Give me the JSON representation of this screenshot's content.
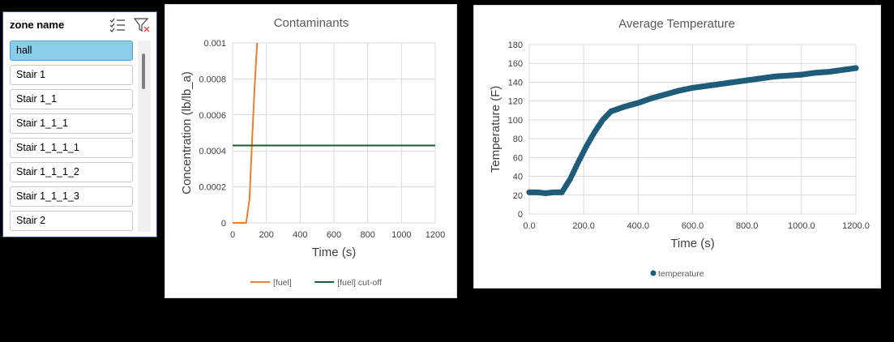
{
  "slicer": {
    "title": "zone name",
    "icons": [
      "multi-select-icon",
      "clear-filter-icon"
    ],
    "items": [
      {
        "label": "hall",
        "selected": true
      },
      {
        "label": "Stair 1",
        "selected": false
      },
      {
        "label": "Stair 1_1",
        "selected": false
      },
      {
        "label": "Stair 1_1_1",
        "selected": false
      },
      {
        "label": "Stair 1_1_1_1",
        "selected": false
      },
      {
        "label": "Stair 1_1_1_2",
        "selected": false
      },
      {
        "label": "Stair 1_1_1_3",
        "selected": false
      },
      {
        "label": "Stair 2",
        "selected": false
      }
    ]
  },
  "chart_data": [
    {
      "type": "line",
      "title": "Contaminants",
      "xlabel": "Time (s)",
      "ylabel": "Concentration (lb/lb_a)",
      "xlim": [
        0,
        1200
      ],
      "ylim": [
        0,
        0.001
      ],
      "xticks": [
        "0",
        "200",
        "400",
        "600",
        "800",
        "1000",
        "1200"
      ],
      "yticks": [
        "0",
        "0.0002",
        "0.0004",
        "0.0006",
        "0.0008",
        "0.001"
      ],
      "grid": true,
      "legend": "bottom",
      "series": [
        {
          "name": "[fuel]",
          "color": "#ed7d31",
          "x": [
            0,
            80,
            100,
            115,
            130,
            145
          ],
          "y": [
            0,
            0,
            0.00013,
            0.00045,
            0.00075,
            0.001
          ]
        },
        {
          "name": "[fuel] cut-off",
          "color": "#1e5b2e",
          "x": [
            0,
            1200
          ],
          "y": [
            0.00043,
            0.00043
          ]
        }
      ]
    },
    {
      "type": "scatter",
      "title": "Average Temperature",
      "xlabel": "Time (s)",
      "ylabel": "Temperature (F)",
      "xlim": [
        0,
        1200
      ],
      "ylim": [
        0,
        180
      ],
      "xticks": [
        "0.0",
        "200.0",
        "400.0",
        "600.0",
        "800.0",
        "1000.0",
        "1200.0"
      ],
      "yticks": [
        "0",
        "20",
        "40",
        "60",
        "80",
        "100",
        "120",
        "140",
        "160",
        "180"
      ],
      "grid": true,
      "legend": "bottom",
      "series": [
        {
          "name": "temperature",
          "color": "#1f5c7a",
          "x": [
            0,
            30,
            60,
            90,
            120,
            150,
            180,
            210,
            240,
            270,
            300,
            350,
            400,
            450,
            500,
            550,
            600,
            650,
            700,
            750,
            800,
            850,
            900,
            950,
            1000,
            1050,
            1100,
            1150,
            1200
          ],
          "y": [
            23,
            23,
            22,
            23,
            23,
            37,
            55,
            72,
            87,
            100,
            109,
            114,
            118,
            123,
            127,
            131,
            134,
            136,
            138,
            140,
            142,
            144,
            146,
            147,
            148,
            150,
            151,
            153,
            155
          ]
        }
      ]
    }
  ]
}
